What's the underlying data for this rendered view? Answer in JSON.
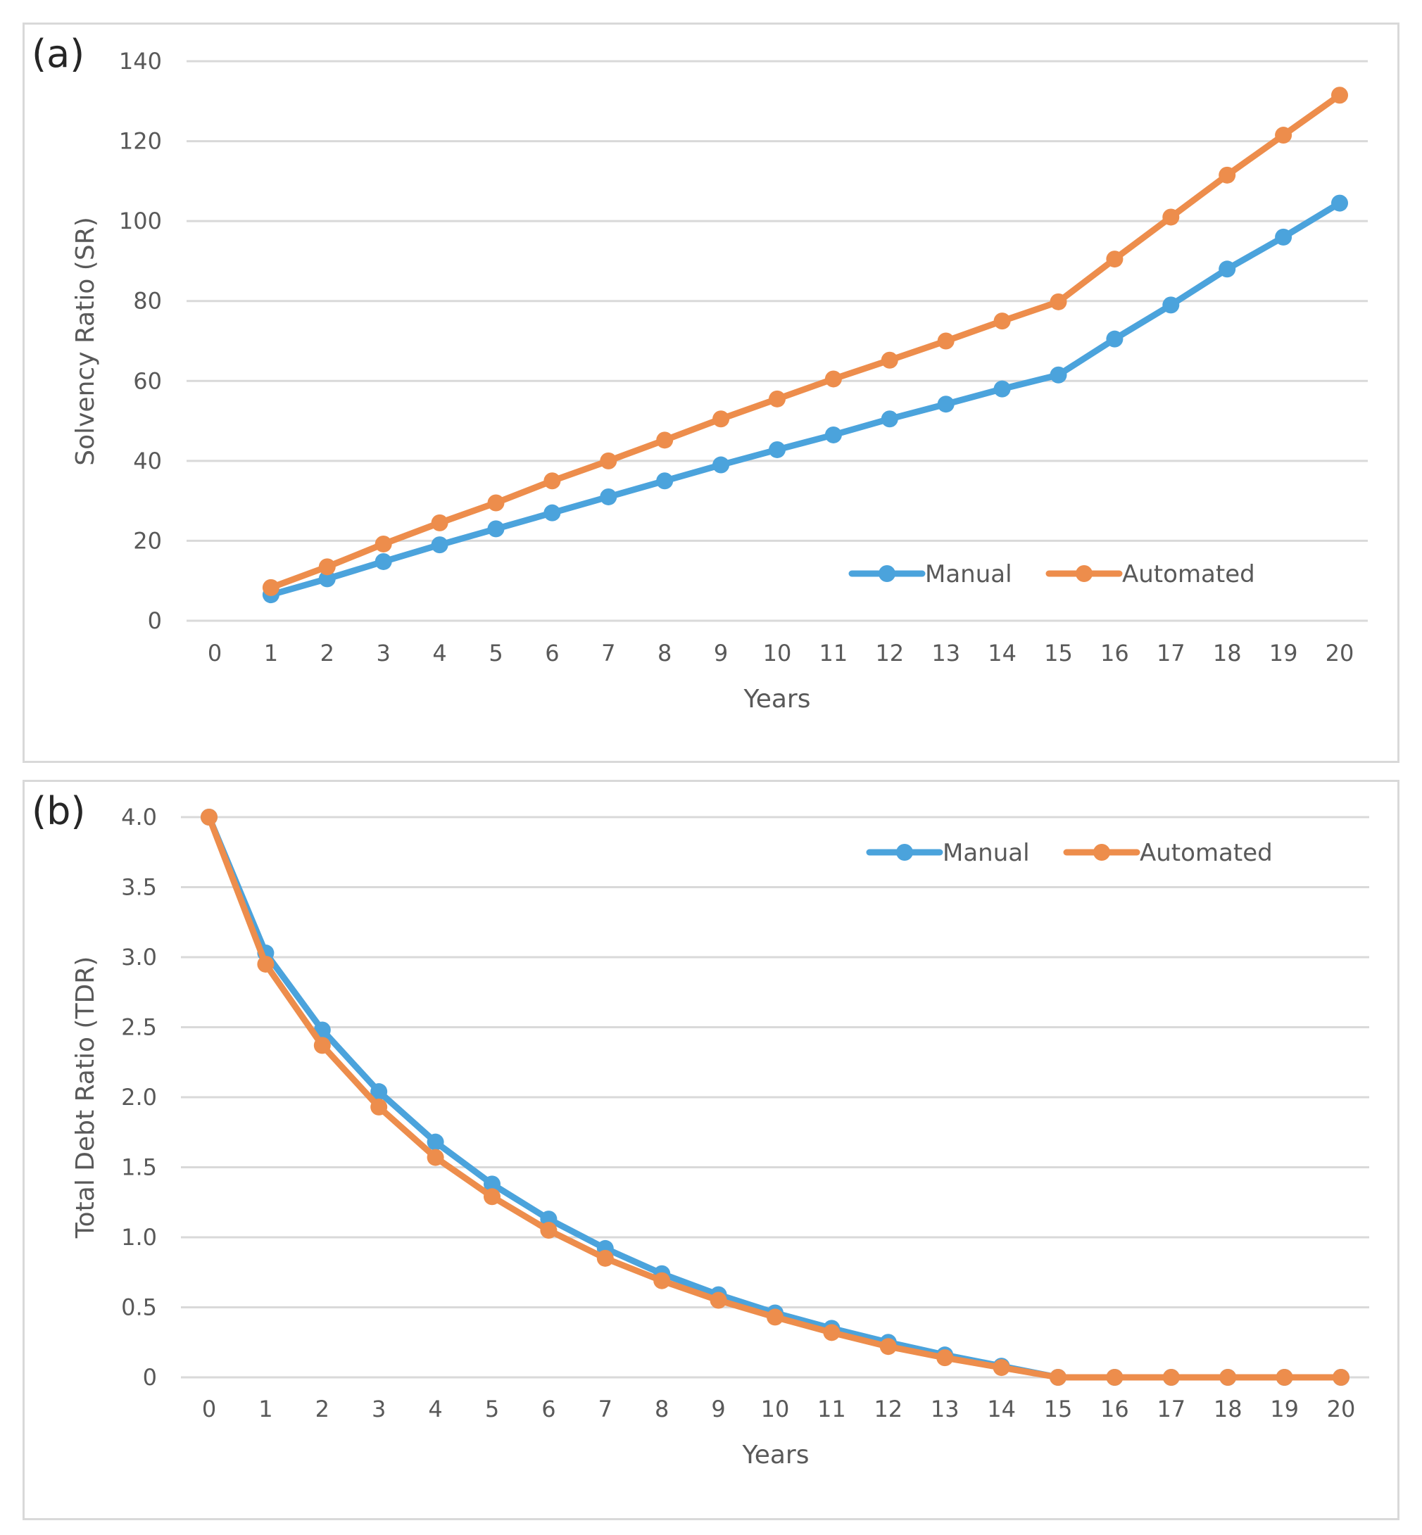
{
  "chart_data": [
    {
      "panel_label": "(a)",
      "type": "line",
      "xlabel": "Years",
      "ylabel": "Solvency Ratio (SR)",
      "x": [
        0,
        1,
        2,
        3,
        4,
        5,
        6,
        7,
        8,
        9,
        10,
        11,
        12,
        13,
        14,
        15,
        16,
        17,
        18,
        19,
        20
      ],
      "xlim": [
        0,
        20
      ],
      "ylim": [
        0,
        140
      ],
      "yticks": [
        0,
        20,
        40,
        60,
        80,
        100,
        120,
        140
      ],
      "ytick_labels": [
        "0",
        "20",
        "40",
        "60",
        "80",
        "100",
        "120",
        "140"
      ],
      "grid": true,
      "legend_position": "bottom-right",
      "series": [
        {
          "name": "Manual",
          "color": "#4ba3dc",
          "values": [
            null,
            6.5,
            10.5,
            14.8,
            19,
            23,
            27,
            31,
            35,
            39,
            42.8,
            46.5,
            50.5,
            54.2,
            58,
            61.5,
            70.5,
            79,
            88,
            96,
            104.5
          ]
        },
        {
          "name": "Automated",
          "color": "#ed8d4c",
          "values": [
            null,
            8.3,
            13.5,
            19.2,
            24.5,
            29.5,
            35,
            40,
            45.2,
            50.5,
            55.5,
            60.5,
            65.2,
            70,
            75,
            79.8,
            90.5,
            101,
            111.5,
            121.5,
            131.5
          ]
        }
      ]
    },
    {
      "panel_label": "(b)",
      "type": "line",
      "xlabel": "Years",
      "ylabel": "Total Debt Ratio (TDR)",
      "x": [
        0,
        1,
        2,
        3,
        4,
        5,
        6,
        7,
        8,
        9,
        10,
        11,
        12,
        13,
        14,
        15,
        16,
        17,
        18,
        19,
        20
      ],
      "xlim": [
        0,
        20
      ],
      "ylim": [
        0,
        4
      ],
      "yticks": [
        0,
        0.5,
        1,
        1.5,
        2,
        2.5,
        3,
        3.5,
        4
      ],
      "ytick_labels": [
        "0",
        "0.5",
        "1.0",
        "1.5",
        "2.0",
        "2.5",
        "3.0",
        "3.5",
        "4.0"
      ],
      "grid": true,
      "legend_position": "top-right",
      "series": [
        {
          "name": "Manual",
          "color": "#4ba3dc",
          "values": [
            4,
            3.03,
            2.48,
            2.04,
            1.68,
            1.38,
            1.13,
            0.92,
            0.74,
            0.59,
            0.46,
            0.35,
            0.25,
            0.16,
            0.08,
            0,
            0,
            0,
            0,
            0,
            0
          ]
        },
        {
          "name": "Automated",
          "color": "#ed8d4c",
          "values": [
            4,
            2.95,
            2.37,
            1.93,
            1.57,
            1.29,
            1.05,
            0.85,
            0.69,
            0.55,
            0.43,
            0.32,
            0.22,
            0.14,
            0.07,
            0,
            0,
            0,
            0,
            0,
            0
          ]
        }
      ]
    }
  ]
}
